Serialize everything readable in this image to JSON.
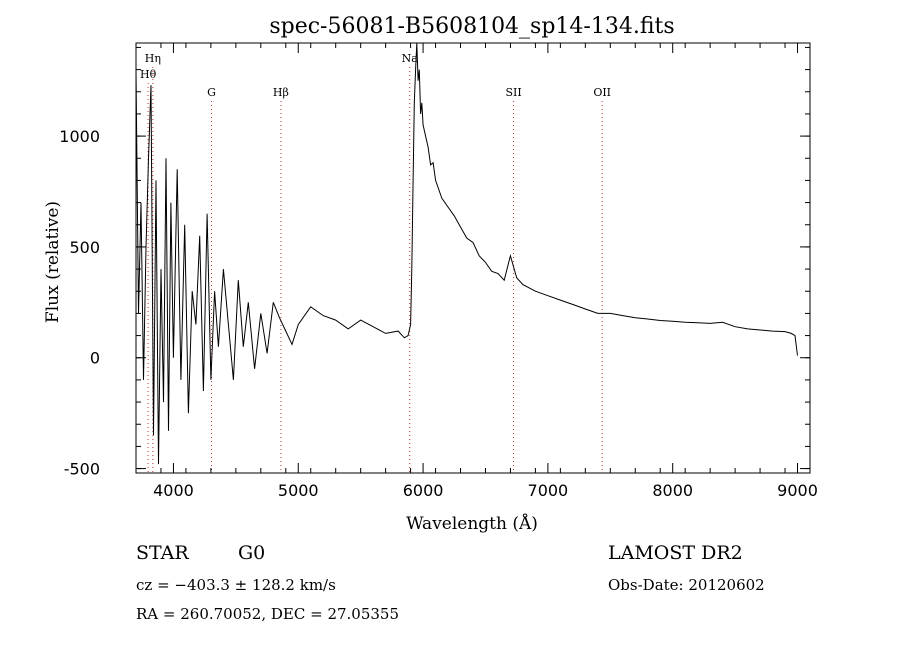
{
  "chart_data": {
    "type": "line",
    "title": "spec-56081-B5608104_sp14-134.fits",
    "xlabel": "Wavelength (Å)",
    "ylabel": "Flux (relative)",
    "xlim": [
      3700,
      9100
    ],
    "ylim": [
      -520,
      1420
    ],
    "xticks": [
      4000,
      5000,
      6000,
      7000,
      8000,
      9000
    ],
    "yticks": [
      -500,
      0,
      500,
      1000
    ],
    "x_minor_step": 200,
    "y_minor_step": 100,
    "line_color": "#000000",
    "marker_color": "#cc3333",
    "series": [
      {
        "x": [
          3700,
          3720,
          3740,
          3760,
          3780,
          3800,
          3820,
          3840,
          3860,
          3880,
          3900,
          3920,
          3940,
          3960,
          3980,
          4000,
          4030,
          4060,
          4090,
          4120,
          4150,
          4180,
          4210,
          4240,
          4270,
          4300,
          4330,
          4360,
          4400,
          4440,
          4480,
          4520,
          4560,
          4600,
          4650,
          4700,
          4750,
          4800,
          4850,
          4900,
          4950,
          5000,
          5100,
          5200,
          5300,
          5400,
          5500,
          5600,
          5700,
          5800,
          5850,
          5880,
          5900,
          5910,
          5920,
          5930,
          5940,
          5950,
          5960,
          5970,
          5980,
          5990,
          6000,
          6020,
          6040,
          6060,
          6080,
          6100,
          6150,
          6200,
          6250,
          6300,
          6350,
          6400,
          6450,
          6500,
          6550,
          6600,
          6650,
          6700,
          6750,
          6800,
          6900,
          7000,
          7100,
          7200,
          7300,
          7400,
          7500,
          7600,
          7700,
          7800,
          7900,
          8000,
          8100,
          8200,
          8300,
          8400,
          8500,
          8600,
          8700,
          8800,
          8900,
          8950,
          8980,
          9000
        ],
        "y": [
          1300,
          200,
          700,
          -100,
          500,
          900,
          1230,
          -350,
          800,
          -480,
          400,
          -200,
          900,
          -330,
          700,
          0,
          850,
          -100,
          600,
          -250,
          300,
          150,
          550,
          -150,
          650,
          -100,
          300,
          50,
          400,
          150,
          -100,
          350,
          50,
          250,
          -50,
          200,
          20,
          250,
          180,
          120,
          60,
          150,
          230,
          190,
          170,
          130,
          170,
          140,
          110,
          120,
          90,
          100,
          150,
          400,
          800,
          1150,
          1300,
          1420,
          1250,
          1300,
          1100,
          1150,
          1050,
          1000,
          950,
          870,
          880,
          800,
          720,
          680,
          640,
          590,
          540,
          520,
          460,
          430,
          390,
          380,
          350,
          460,
          360,
          330,
          300,
          280,
          260,
          240,
          220,
          200,
          200,
          190,
          180,
          175,
          168,
          165,
          160,
          158,
          155,
          160,
          140,
          130,
          125,
          120,
          118,
          110,
          100,
          10
        ]
      }
    ],
    "line_markers": [
      {
        "label": "Hη",
        "x": 3835,
        "row": 0
      },
      {
        "label": "Hθ",
        "x": 3797,
        "row": 1
      },
      {
        "label": "G",
        "x": 4305,
        "row": 2
      },
      {
        "label": "Hβ",
        "x": 4861,
        "row": 2
      },
      {
        "label": "Na",
        "x": 5893,
        "row": 0
      },
      {
        "label": "SII",
        "x": 6725,
        "row": 2
      },
      {
        "label": "OII",
        "x": 7435,
        "row": 2
      }
    ]
  },
  "info": {
    "object_type": "STAR",
    "subclass": "G0",
    "survey": "LAMOST DR2",
    "redshift": "cz = −403.3 ± 128.2 km/s",
    "obs_date": "Obs-Date: 20120602",
    "coordinates": "RA = 260.70052, DEC =  27.05355"
  }
}
